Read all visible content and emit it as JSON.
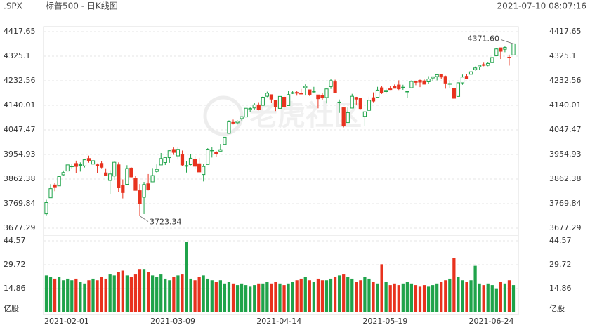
{
  "chart_data": {
    "type": "candlestick",
    "symbol": ".SPX",
    "title": "标普500 - 日K线图",
    "timestamp": "2021-07-10 08:07:16",
    "watermark": "老虎社区",
    "up_color": "#1fa34a",
    "down_color": "#e8321e",
    "grid": true,
    "categories": [
      "2021-02-01",
      null,
      null,
      null,
      null,
      null,
      null,
      null,
      null,
      null,
      null,
      null,
      null,
      null,
      null,
      null,
      null,
      null,
      null,
      null,
      null,
      null,
      null,
      null,
      null,
      "2021-03-09",
      null,
      null,
      null,
      null,
      null,
      null,
      null,
      null,
      null,
      null,
      null,
      null,
      null,
      null,
      null,
      null,
      null,
      null,
      null,
      null,
      null,
      null,
      null,
      null,
      "2021-04-14",
      null,
      null,
      null,
      null,
      null,
      null,
      null,
      null,
      null,
      null,
      null,
      null,
      null,
      null,
      null,
      null,
      null,
      null,
      null,
      null,
      null,
      null,
      null,
      null,
      "2021-05-19",
      null,
      null,
      null,
      null,
      null,
      null,
      null,
      null,
      null,
      null,
      null,
      null,
      null,
      null,
      null,
      null,
      null,
      null,
      null,
      null,
      null,
      null,
      null,
      null,
      "2021-06-24",
      null,
      null,
      null,
      null,
      null,
      null,
      null,
      null,
      null,
      null
    ],
    "open": [
      3731.2,
      3791.8,
      3840.3,
      3836.7,
      3878.3,
      3892.6,
      3910.5,
      3920.8,
      3916.4,
      3911.7,
      3939.6,
      3918.5,
      3915.9,
      3921.2,
      3885.6,
      3857.1,
      3873.7,
      3915.8,
      3839.7,
      3842.5,
      3903.6,
      3863.9,
      3818.5,
      3793.6,
      3844.4,
      3851.9,
      3891.0,
      3915.5,
      3924.5,
      3942.9,
      3973.6,
      3949.6,
      3953.5,
      3913.1,
      3916.5,
      3937.6,
      3919.9,
      3879.3,
      3917.1,
      3969.3,
      3963.3,
      3967.3,
      3992.8,
      4034.4,
      4075.6,
      4074.3,
      4089.9,
      4096.1,
      4124.7,
      4130.1,
      4141.6,
      4139.8,
      4174.1,
      4179.8,
      4159.2,
      4128.4,
      4170.5,
      4138.8,
      4185.0,
      4188.3,
      4185.1,
      4206.1,
      4198.1,
      4191.9,
      4179.0,
      4177.1,
      4169.1,
      4210.3,
      4228.3,
      4150.3,
      4130.6,
      4074.9,
      4129.6,
      4169.9,
      4165.9,
      4098.5,
      4121.0,
      4168.6,
      4170.2,
      4205.9,
      4191.6,
      4201.9,
      4210.8,
      4216.5,
      4206.8,
      4191.4,
      4206.1,
      4229.3,
      4233.8,
      4232.0,
      4228.6,
      4242.9,
      4248.3,
      4255.3,
      4248.9,
      4220.4,
      4204.8,
      4173.4,
      4224.6,
      4249.3,
      4256.9,
      4274.5,
      4284.9,
      4293.2,
      4290.7,
      4300.7,
      4326.6,
      4356.5,
      4351.0,
      4321.1,
      4329.4
    ],
    "high": [
      3784.3,
      3843.1,
      3847.5,
      3872.4,
      3894.6,
      3915.8,
      3918.4,
      3931.5,
      3925.0,
      3937.2,
      3950.4,
      3933.6,
      3921.0,
      3930.4,
      3902.9,
      3895.9,
      3928.7,
      3925.0,
      3861.1,
      3914.5,
      3906.4,
      3874.5,
      3843.7,
      3851.7,
      3881.1,
      3903.8,
      3917.4,
      3960.3,
      3944.9,
      3970.1,
      3981.0,
      3983.9,
      3969.6,
      3930.1,
      3955.3,
      3949.1,
      3942.1,
      3919.5,
      3978.2,
      3981.8,
      3968.0,
      3994.4,
      4020.6,
      4083.4,
      4086.2,
      4083.1,
      4098.2,
      4129.5,
      4131.8,
      4148.0,
      4151.7,
      4173.5,
      4191.3,
      4180.8,
      4159.2,
      4175.0,
      4179.6,
      4194.2,
      4194.2,
      4193.3,
      4201.5,
      4218.8,
      4198.1,
      4209.4,
      4179.0,
      4187.7,
      4202.7,
      4238.0,
      4236.4,
      4162.0,
      4134.7,
      4131.6,
      4183.1,
      4171.9,
      4169.1,
      4116.9,
      4172.8,
      4188.7,
      4209.5,
      4213.4,
      4202.6,
      4213.4,
      4218.4,
      4234.1,
      4217.4,
      4193.4,
      4233.5,
      4232.3,
      4236.7,
      4237.1,
      4249.7,
      4248.4,
      4255.6,
      4257.2,
      4251.9,
      4233.0,
      4204.8,
      4226.2,
      4255.8,
      4256.6,
      4271.3,
      4286.1,
      4292.1,
      4300.5,
      4302.4,
      4320.7,
      4355.4,
      4356.5,
      4361.9,
      4330.9,
      4371.6
    ],
    "low": [
      3725.6,
      3791.8,
      3816.7,
      3836.7,
      3874.9,
      3892.6,
      3902.6,
      3884.9,
      3890.4,
      3905.8,
      3923.9,
      3900.4,
      3885.0,
      3903.1,
      3874.7,
      3805.6,
      3859.6,
      3814.0,
      3789.5,
      3842.5,
      3868.6,
      3818.9,
      3723.34,
      3730.2,
      3819.3,
      3851.9,
      3885.7,
      3915.5,
      3915.2,
      3923.5,
      3953.4,
      3935.7,
      3910.9,
      3886.8,
      3914.2,
      3901.6,
      3889.1,
      3853.5,
      3917.1,
      3943.3,
      3944.4,
      3966.9,
      3992.8,
      4034.4,
      4068.1,
      4068.3,
      4082.5,
      4095.5,
      4114.8,
      4124.4,
      4120.9,
      4139.8,
      4170.8,
      4150.5,
      4118.4,
      4126.4,
      4123.7,
      4138.8,
      4182.4,
      4176.2,
      4181.8,
      4176.8,
      4174.9,
      4188.0,
      4128.6,
      4158.9,
      4147.3,
      4201.6,
      4188.1,
      4111.5,
      4056.9,
      4074.9,
      4129.6,
      4142.7,
      4125.9,
      4061.4,
      4121.0,
      4151.7,
      4170.2,
      4182.5,
      4184.1,
      4197.8,
      4203.6,
      4197.6,
      4198.3,
      4167.5,
      4206.1,
      4215.7,
      4208.4,
      4218.7,
      4220.3,
      4232.3,
      4234.1,
      4238.4,
      4202.5,
      4203.6,
      4164.4,
      4173.4,
      4217.3,
      4241.4,
      4256.9,
      4271.2,
      4274.7,
      4287.0,
      4287.0,
      4300.7,
      4326.6,
      4314.4,
      4340.0,
      4289.4,
      4329.4
    ],
    "close": [
      3773.9,
      3826.3,
      3830.2,
      3871.7,
      3886.8,
      3915.6,
      3911.2,
      3909.9,
      3916.4,
      3934.8,
      3932.6,
      3931.3,
      3914.0,
      3906.7,
      3876.5,
      3881.4,
      3925.4,
      3829.3,
      3811.2,
      3901.8,
      3870.3,
      3819.7,
      3768.5,
      3841.9,
      3821.4,
      3875.4,
      3898.8,
      3939.3,
      3943.3,
      3968.9,
      3962.7,
      3974.1,
      3915.5,
      3913.1,
      3940.6,
      3910.5,
      3889.1,
      3909.5,
      3974.5,
      3971.1,
      3958.6,
      3972.9,
      4019.9,
      4077.9,
      4073.9,
      4080.0,
      4097.2,
      4128.8,
      4128.0,
      4141.6,
      4124.7,
      4170.4,
      4185.5,
      4163.3,
      4134.9,
      4173.4,
      4135.0,
      4180.2,
      4187.6,
      4186.7,
      4183.2,
      4211.5,
      4181.2,
      4192.7,
      4164.7,
      4167.6,
      4201.6,
      4232.6,
      4188.4,
      4152.1,
      4063.0,
      4112.5,
      4173.9,
      4163.3,
      4127.8,
      4115.7,
      4159.1,
      4155.9,
      4197.1,
      4188.1,
      4196.0,
      4200.9,
      4204.1,
      4202.0,
      4208.1,
      4192.9,
      4229.9,
      4226.5,
      4227.3,
      4219.6,
      4239.2,
      4247.4,
      4255.2,
      4246.6,
      4223.7,
      4221.9,
      4166.5,
      4224.8,
      4246.4,
      4241.8,
      4266.5,
      4280.7,
      4290.6,
      4291.8,
      4297.5,
      4319.9,
      4352.3,
      4343.5,
      4358.1,
      4320.8,
      4371.6
    ],
    "volume": [
      23,
      22,
      21,
      22,
      20,
      21,
      20,
      21,
      19,
      18,
      20,
      21,
      20,
      22,
      21,
      24,
      23,
      25,
      26,
      23,
      22,
      24,
      27,
      27,
      25,
      23,
      22,
      24,
      21,
      20,
      22,
      23,
      24,
      44,
      21,
      20,
      22,
      23,
      21,
      20,
      19,
      20,
      18,
      19,
      18,
      17,
      18,
      17,
      16,
      17,
      18,
      18,
      19,
      18,
      19,
      18,
      17,
      18,
      19,
      20,
      21,
      22,
      20,
      19,
      21,
      20,
      20,
      21,
      22,
      23,
      24,
      22,
      21,
      19,
      20,
      22,
      21,
      19,
      18,
      30,
      19,
      17,
      18,
      17,
      18,
      19,
      18,
      17,
      16,
      17,
      16,
      17,
      18,
      19,
      20,
      21,
      34,
      22,
      20,
      19,
      20,
      29,
      18,
      17,
      18,
      17,
      15,
      19,
      18,
      20,
      17
    ],
    "ylim": [
      3677.29,
      4417.65
    ],
    "yticks": [
      3677.29,
      3769.84,
      3862.38,
      3954.93,
      4047.47,
      4140.01,
      4232.56,
      4325.1,
      4417.65
    ],
    "volume_ylim": [
      0,
      44.57
    ],
    "volume_yticks": [
      14.86,
      29.72,
      44.57
    ],
    "volume_unit": "亿股",
    "max_label": "4371.60",
    "min_label": "3723.34"
  }
}
